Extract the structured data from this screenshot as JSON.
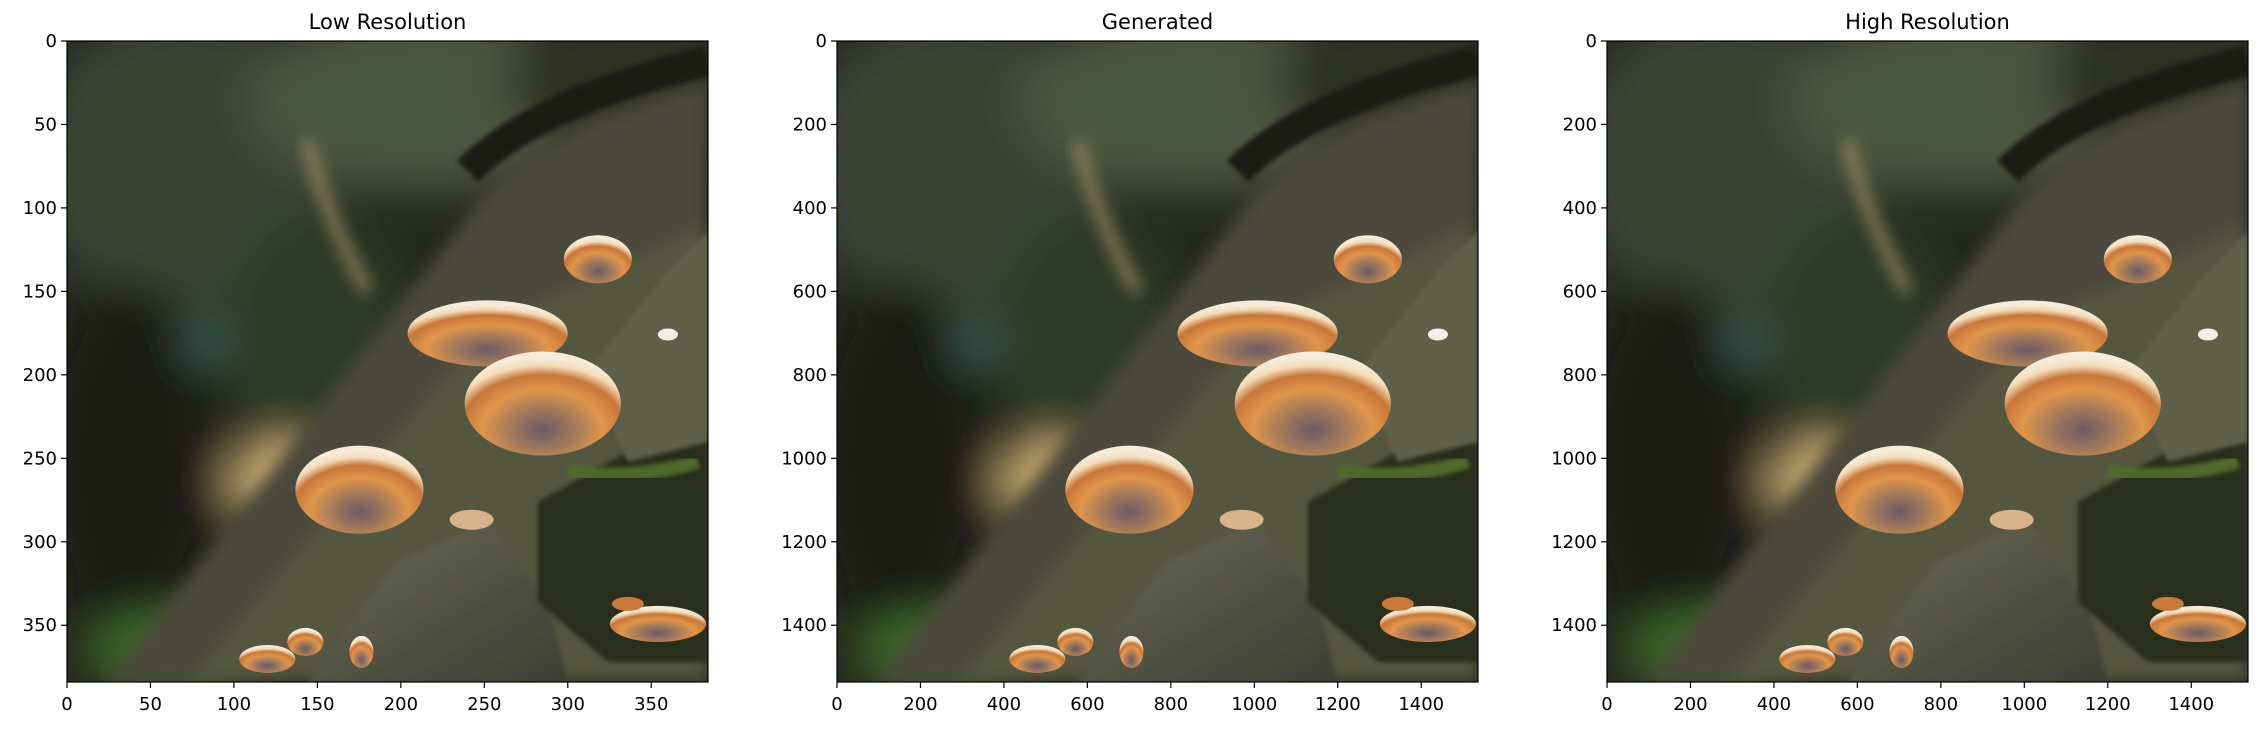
{
  "figure": {
    "panels": [
      {
        "title": "Low Resolution",
        "x_ticks": [
          "0",
          "50",
          "100",
          "150",
          "200",
          "250",
          "300",
          "350"
        ],
        "y_ticks": [
          "0",
          "50",
          "100",
          "150",
          "200",
          "250",
          "300",
          "350"
        ],
        "x_values": [
          0,
          50,
          100,
          150,
          200,
          250,
          300,
          350
        ],
        "y_values": [
          0,
          50,
          100,
          150,
          200,
          250,
          300,
          350
        ],
        "extent": 384
      },
      {
        "title": "Generated",
        "x_ticks": [
          "0",
          "200",
          "400",
          "600",
          "800",
          "1000",
          "1200",
          "1400"
        ],
        "y_ticks": [
          "0",
          "200",
          "400",
          "600",
          "800",
          "1000",
          "1200",
          "1400"
        ],
        "x_values": [
          0,
          200,
          400,
          600,
          800,
          1000,
          1200,
          1400
        ],
        "y_values": [
          0,
          200,
          400,
          600,
          800,
          1000,
          1200,
          1400
        ],
        "extent": 1536
      },
      {
        "title": "High Resolution",
        "x_ticks": [
          "0",
          "200",
          "400",
          "600",
          "800",
          "1000",
          "1200",
          "1400"
        ],
        "y_ticks": [
          "0",
          "200",
          "400",
          "600",
          "800",
          "1000",
          "1200",
          "1400"
        ],
        "x_values": [
          0,
          200,
          400,
          600,
          800,
          1000,
          1200,
          1400
        ],
        "y_values": [
          0,
          200,
          400,
          600,
          800,
          1000,
          1200,
          1400
        ],
        "extent": 1536
      }
    ],
    "image_icon": "mushroom-photo-icon",
    "colors": {
      "background_dark": "#1f2418",
      "moss": "#4a5a2e",
      "log": "#5b5a4a",
      "mushroom_orange": "#d98a3a",
      "mushroom_cream": "#efe2c6"
    }
  }
}
